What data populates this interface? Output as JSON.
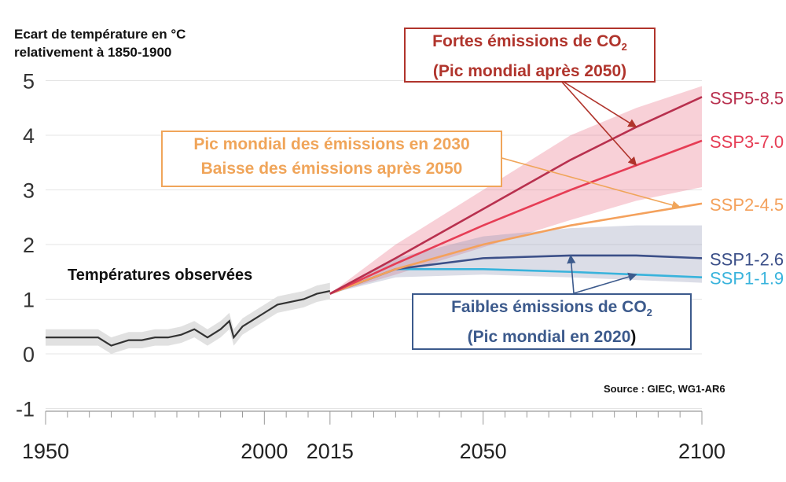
{
  "chart_data": {
    "type": "line",
    "ylabel": [
      "Ecart de température en °C",
      "relativement à 1850-1900"
    ],
    "xlim": [
      1950,
      2100
    ],
    "ylim": [
      -1,
      5
    ],
    "x_ticks": [
      1950,
      2000,
      2015,
      2050,
      2100
    ],
    "y_ticks": [
      -1,
      0,
      1,
      2,
      3,
      4,
      5
    ],
    "grid": "horizontal",
    "observed": {
      "label": "Températures observées",
      "color": "#333333",
      "band_color": "#dedede",
      "x": [
        1950,
        1953,
        1956,
        1959,
        1962,
        1965,
        1967,
        1969,
        1972,
        1975,
        1978,
        1981,
        1984,
        1987,
        1990,
        1992,
        1993,
        1995,
        1998,
        2000,
        2003,
        2006,
        2009,
        2012,
        2015
      ],
      "y": [
        0.3,
        0.3,
        0.3,
        0.3,
        0.3,
        0.15,
        0.2,
        0.25,
        0.25,
        0.3,
        0.3,
        0.35,
        0.45,
        0.3,
        0.45,
        0.6,
        0.3,
        0.5,
        0.65,
        0.75,
        0.9,
        0.95,
        1.0,
        1.1,
        1.15
      ],
      "band": 0.15
    },
    "series": [
      {
        "name": "SSP5-8.5",
        "color": "#b8304e",
        "x": [
          2015,
          2030,
          2050,
          2070,
          2085,
          2100
        ],
        "y": [
          1.1,
          1.75,
          2.65,
          3.55,
          4.15,
          4.7
        ]
      },
      {
        "name": "SSP3-7.0",
        "color": "#e63d55",
        "x": [
          2015,
          2030,
          2050,
          2070,
          2085,
          2100
        ],
        "y": [
          1.1,
          1.65,
          2.35,
          3.0,
          3.45,
          3.9
        ]
      },
      {
        "name": "SSP2-4.5",
        "color": "#f4a15c",
        "x": [
          2015,
          2030,
          2050,
          2070,
          2085,
          2100
        ],
        "y": [
          1.1,
          1.55,
          2.0,
          2.35,
          2.55,
          2.75
        ]
      },
      {
        "name": "SSP1-2.6",
        "color": "#3b4f88",
        "x": [
          2015,
          2030,
          2050,
          2070,
          2085,
          2100
        ],
        "y": [
          1.1,
          1.55,
          1.75,
          1.8,
          1.8,
          1.75
        ]
      },
      {
        "name": "SSP1-1.9",
        "color": "#38b3dc",
        "x": [
          2015,
          2030,
          2050,
          2070,
          2085,
          2100
        ],
        "y": [
          1.1,
          1.55,
          1.55,
          1.5,
          1.45,
          1.4
        ]
      }
    ],
    "bands": [
      {
        "name": "high",
        "color": "#e8647a",
        "x": [
          2015,
          2030,
          2050,
          2070,
          2085,
          2100
        ],
        "lower": [
          1.1,
          1.45,
          1.95,
          2.45,
          2.8,
          3.05
        ],
        "upper": [
          1.1,
          2.0,
          3.0,
          4.0,
          4.5,
          4.9
        ]
      },
      {
        "name": "low",
        "color": "#8890b0",
        "x": [
          2015,
          2030,
          2050,
          2070,
          2085,
          2100
        ],
        "lower": [
          1.1,
          1.4,
          1.45,
          1.4,
          1.35,
          1.3
        ],
        "upper": [
          1.1,
          1.75,
          2.15,
          2.3,
          2.35,
          2.35
        ]
      }
    ],
    "annotations": {
      "high": {
        "line1": "Fortes émissions de CO",
        "line1_sub": "2",
        "line2": "(Pic mondial après 2050)",
        "color": "#b0342c"
      },
      "mid": {
        "line1": "Pic mondial des émissions en 2030",
        "line2": "Baisse des émissions après 2050",
        "color": "#f0a55a"
      },
      "low": {
        "line1": "Faibles émissions de CO",
        "line1_sub": "2",
        "line2a": "(Pic mondial en 2020",
        "line2b": ")",
        "color": "#3c5a8c"
      }
    },
    "source": "Source : GIEC, WG1-AR6"
  }
}
